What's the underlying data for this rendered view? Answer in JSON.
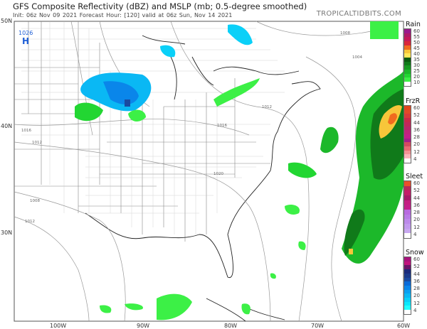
{
  "header": {
    "title": "GFS Composite Reflectivity (dBZ) and MSLP (mb; 0.5-degree smoothed)",
    "subtitle": "Init: 06z Nov 09 2021   Forecast Hour: [120]   valid at 06z Sun, Nov 14 2021",
    "brand": "TROPICALTIDBITS.COM"
  },
  "axes": {
    "lat_labels": [
      "50N",
      "40N",
      "30N"
    ],
    "lon_labels": [
      "100W",
      "90W",
      "80W",
      "70W",
      "60W"
    ]
  },
  "pressure_centers": [
    {
      "type": "H",
      "value": "1026",
      "color": "#1f5fd6"
    }
  ],
  "isobar_labels": [
    "1008",
    "1004",
    "1012",
    "1016",
    "1012",
    "1016",
    "1020",
    "1008",
    "1012"
  ],
  "legends": [
    {
      "name": "Rain",
      "labels": [
        "60",
        "55",
        "50",
        "45",
        "40",
        "35",
        "30",
        "25",
        "20",
        "10"
      ],
      "colors": [
        "#9a1a8c",
        "#b01a6a",
        "#c4195a",
        "#d9263a",
        "#f06a1e",
        "#f7c63a",
        "#ffe85a",
        "#0a5a10",
        "#107a1a",
        "#169a22",
        "#1cb82a",
        "#22d632",
        "#3cf046",
        "#ffffff"
      ]
    },
    {
      "name": "FrzR",
      "labels": [
        "60",
        "52",
        "44",
        "36",
        "28",
        "20",
        "12",
        "4"
      ],
      "colors": [
        "#e0461e",
        "#e04a28",
        "#d83a3a",
        "#c82a4a",
        "#c0285a",
        "#b8286a",
        "#c0247c",
        "#c41e8a",
        "#a4208a",
        "#d44a60",
        "#e86a72",
        "#f29494",
        "#f8b4b8",
        "#ffffff"
      ]
    },
    {
      "name": "Sleet",
      "labels": [
        "60",
        "52",
        "44",
        "36",
        "28",
        "20",
        "12",
        "4"
      ],
      "colors": [
        "#e8502a",
        "#b8285a",
        "#c41e68",
        "#a81a6a",
        "#c41e80",
        "#c41e8a",
        "#b86ae0",
        "#b87ae6",
        "#bc8aea",
        "#c29aee",
        "#c8a8f0",
        "#ffffff"
      ]
    },
    {
      "name": "Snow",
      "labels": [
        "60",
        "52",
        "44",
        "36",
        "28",
        "20",
        "12",
        "4"
      ],
      "colors": [
        "#a8127c",
        "#c0147c",
        "#6a1468",
        "#1a2a7a",
        "#1a3a8a",
        "#1a4aa0",
        "#0a6ad8",
        "#0a86ea",
        "#0aa0f0",
        "#0ab8f4",
        "#0ad0f8",
        "#0ae8fc",
        "#20ffff",
        "#ffffff"
      ]
    }
  ]
}
